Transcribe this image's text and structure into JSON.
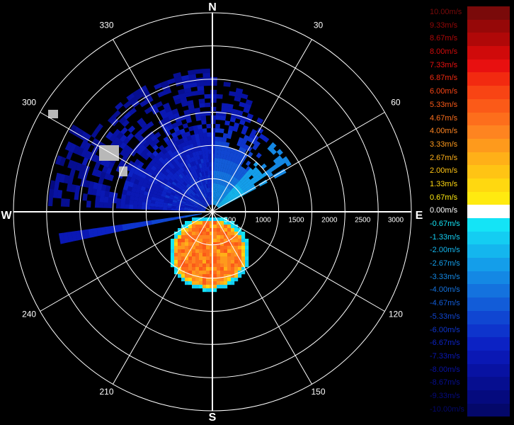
{
  "chart_data": {
    "type": "heatmap",
    "subtype": "polar-ppi",
    "title": "",
    "compass": {
      "north": "N",
      "east": "E",
      "south": "S",
      "west": "W"
    },
    "azimuth_labels": [
      "30",
      "60",
      "120",
      "150",
      "210",
      "240",
      "300",
      "330"
    ],
    "range_labels": [
      "500",
      "1000",
      "1500",
      "2000",
      "2500",
      "3000"
    ],
    "rings": 6,
    "legend": {
      "unit": "m/s",
      "entries": [
        {
          "label": "10.00m/s",
          "value": 10.0,
          "color": "#7a0a0a"
        },
        {
          "label": "9.33m/s",
          "value": 9.33,
          "color": "#960808"
        },
        {
          "label": "8.67m/s",
          "value": 8.67,
          "color": "#b00808"
        },
        {
          "label": "8.00m/s",
          "value": 8.0,
          "color": "#d00a0a"
        },
        {
          "label": "7.33m/s",
          "value": 7.33,
          "color": "#e81010"
        },
        {
          "label": "6.87m/s",
          "value": 6.87,
          "color": "#f22a10"
        },
        {
          "label": "6.00m/s",
          "value": 6.0,
          "color": "#f84414"
        },
        {
          "label": "5.33m/s",
          "value": 5.33,
          "color": "#fb5a18"
        },
        {
          "label": "4.67m/s",
          "value": 4.67,
          "color": "#fd6e1c"
        },
        {
          "label": "4.00m/s",
          "value": 4.0,
          "color": "#fe8420"
        },
        {
          "label": "3.33m/s",
          "value": 3.33,
          "color": "#fe9a1c"
        },
        {
          "label": "2.67m/s",
          "value": 2.67,
          "color": "#ffb018"
        },
        {
          "label": "2.00m/s",
          "value": 2.0,
          "color": "#ffc414"
        },
        {
          "label": "1.33m/s",
          "value": 1.33,
          "color": "#ffd810"
        },
        {
          "label": "0.67m/s",
          "value": 0.67,
          "color": "#ffea10"
        },
        {
          "label": "0.00m/s",
          "value": 0.0,
          "color": "#ffffff"
        },
        {
          "label": "-0.67m/s",
          "value": -0.67,
          "color": "#14e4f6"
        },
        {
          "label": "-1.33m/s",
          "value": -1.33,
          "color": "#14cdf2"
        },
        {
          "label": "-2.00m/s",
          "value": -2.0,
          "color": "#14b6ee"
        },
        {
          "label": "-2.67m/s",
          "value": -2.67,
          "color": "#149eea"
        },
        {
          "label": "-3.33m/s",
          "value": -3.33,
          "color": "#1488e4"
        },
        {
          "label": "-4.00m/s",
          "value": -4.0,
          "color": "#1472de"
        },
        {
          "label": "-4.67m/s",
          "value": -4.67,
          "color": "#125cd8"
        },
        {
          "label": "-5.33m/s",
          "value": -5.33,
          "color": "#1046d2"
        },
        {
          "label": "-6.00m/s",
          "value": -6.0,
          "color": "#0e34cc"
        },
        {
          "label": "-6.67m/s",
          "value": -6.67,
          "color": "#0c22c4"
        },
        {
          "label": "-7.33m/s",
          "value": -7.33,
          "color": "#0a18b4"
        },
        {
          "label": "-8.00m/s",
          "value": -8.0,
          "color": "#0812a2"
        },
        {
          "label": "-8.67m/s",
          "value": -8.67,
          "color": "#060e90"
        },
        {
          "label": "-9.33m/s",
          "value": -9.33,
          "color": "#050a7e"
        },
        {
          "label": "-10.00m/s",
          "value": -10.0,
          "color": "#04086a"
        }
      ]
    }
  }
}
